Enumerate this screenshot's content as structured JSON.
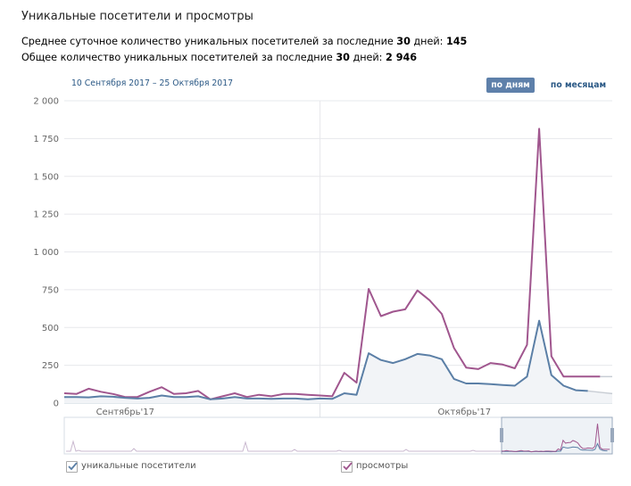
{
  "header": {
    "title": "Уникальные посетители и просмотры",
    "stat1_prefix": "Среднее суточное количество уникальных посетителей за последние ",
    "stat1_days": "30",
    "stat1_mid": " дней: ",
    "stat1_value": "145",
    "stat2_prefix": "Общее количество уникальных посетителей за последние ",
    "stat2_days": "30",
    "stat2_mid": " дней: ",
    "stat2_value": "2 946"
  },
  "controls": {
    "date_range": "10 Сентября 2017 – 25 Октября 2017",
    "by_days": "по дням",
    "by_months": "по месяцам"
  },
  "colors": {
    "visitors": "#5b7fa6",
    "views": "#a0568e",
    "grid": "#e7e8ec",
    "active_button": "#5e80aa"
  },
  "chart_data": {
    "type": "line",
    "ylim": [
      0,
      2000
    ],
    "y_ticks": [
      "0",
      "250",
      "500",
      "750",
      "1 000",
      "1 250",
      "1 500",
      "1 750",
      "2 000"
    ],
    "y_tick_values": [
      0,
      250,
      500,
      750,
      1000,
      1250,
      1500,
      1750,
      2000
    ],
    "x_month_labels": [
      "Сентябрь'17",
      "Октябрь'17"
    ],
    "x_range_days": [
      0,
      45
    ],
    "month_boundary_day": 21,
    "series": [
      {
        "name": "уникальные посетители",
        "color": "#5b7fa6",
        "days": [
          0,
          1,
          2,
          3,
          4,
          5,
          6,
          7,
          8,
          9,
          10,
          11,
          12,
          13,
          14,
          15,
          16,
          17,
          18,
          19,
          20,
          21,
          22,
          23,
          24,
          25,
          26,
          27,
          28,
          29,
          30,
          31,
          32,
          33,
          34,
          35,
          36,
          37,
          38,
          39,
          40,
          41,
          42,
          43,
          44
        ],
        "values": [
          40,
          40,
          38,
          45,
          42,
          35,
          30,
          35,
          50,
          40,
          40,
          45,
          25,
          30,
          40,
          30,
          30,
          28,
          30,
          30,
          25,
          30,
          28,
          65,
          55,
          330,
          285,
          265,
          290,
          325,
          315,
          290,
          160,
          130,
          130,
          125,
          120,
          115,
          175,
          545,
          185,
          115,
          85,
          80,
          null
        ]
      },
      {
        "name": "просмотры",
        "color": "#a0568e",
        "days": [
          0,
          1,
          2,
          3,
          4,
          5,
          6,
          7,
          8,
          9,
          10,
          11,
          12,
          13,
          14,
          15,
          16,
          17,
          18,
          19,
          20,
          21,
          22,
          23,
          24,
          25,
          26,
          27,
          28,
          29,
          30,
          31,
          32,
          33,
          34,
          35,
          36,
          37,
          38,
          39,
          40,
          41,
          42,
          43,
          44
        ],
        "values": [
          65,
          60,
          95,
          75,
          60,
          40,
          40,
          75,
          105,
          60,
          65,
          80,
          25,
          45,
          65,
          40,
          55,
          45,
          60,
          60,
          55,
          50,
          45,
          200,
          135,
          755,
          575,
          605,
          620,
          745,
          680,
          590,
          365,
          235,
          225,
          265,
          255,
          230,
          385,
          1815,
          310,
          175,
          175,
          175,
          175
        ]
      }
    ],
    "legend": [
      "уникальные посетители",
      "просмотры"
    ],
    "legend_position": "bottom-left",
    "grid": true
  }
}
